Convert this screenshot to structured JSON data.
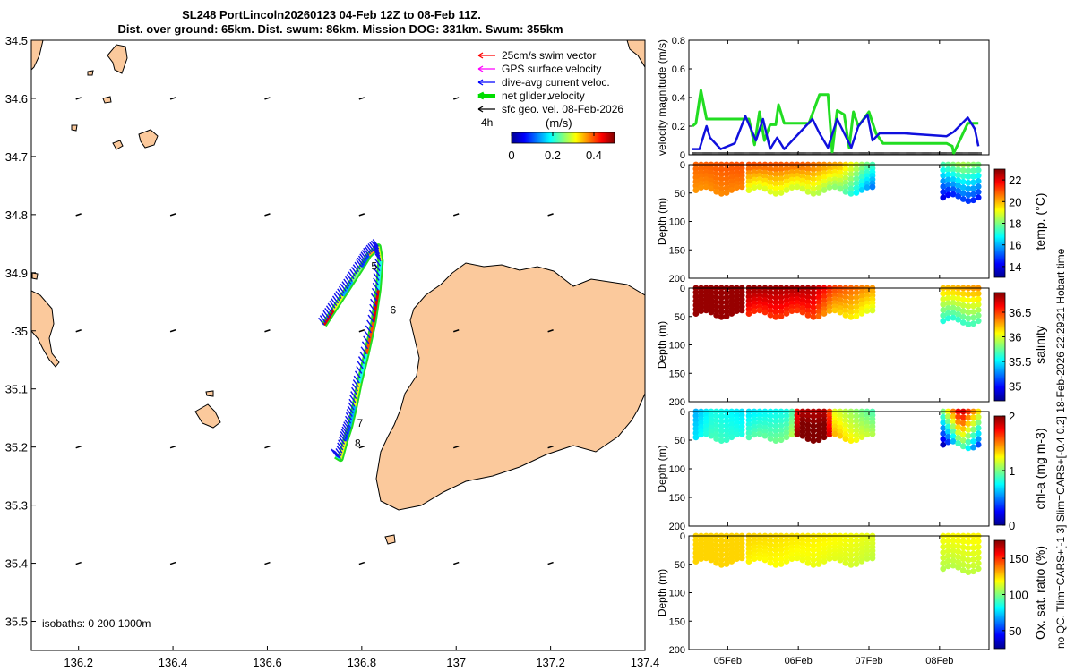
{
  "title_line1": "SL248 PortLincoln20260123 04-Feb 12Z to 08-Feb 11Z.",
  "title_line2": "Dist. over ground: 65km. Dist. swum: 86km. Mission DOG: 331km. Swum: 355km",
  "side_note": "no QC. Tlim=CARS+[-1 3] Slim=CARS+[-0.4 0.2] 18-Feb-2026 22:29:21 Hobart time",
  "map": {
    "lon_range": [
      136.1,
      137.4
    ],
    "lat_range": [
      -35.55,
      -34.5
    ],
    "lon_ticks": [
      136.2,
      136.4,
      136.6,
      136.8,
      137,
      137.2,
      137.4
    ],
    "lon_tick_labels": [
      "136.2",
      "136.4",
      "136.6",
      "136.8",
      "137",
      "137.2",
      "137.4"
    ],
    "lat_ticks": [
      -34.5,
      -34.6,
      -34.7,
      -34.8,
      -34.9,
      -35.0,
      -35.1,
      -35.2,
      -35.3,
      -35.4,
      -35.5
    ],
    "lat_tick_labels": [
      "34.5",
      "34.6",
      "34.7",
      "34.8",
      "34.9",
      "-35",
      "35.1",
      "35.2",
      "35.3",
      "35.4",
      "35.5"
    ],
    "isobaths_label": "isobaths: 0   200  1000m",
    "legend": [
      {
        "label": "25cm/s swim vector",
        "color": "#ff0000",
        "style": "arrow"
      },
      {
        "label": "GPS surface velocity",
        "color": "#ff00ff",
        "style": "arrow"
      },
      {
        "label": "dive-avg current veloc.",
        "color": "#0000ff",
        "style": "arrow"
      },
      {
        "label": "net glider velocity",
        "color": "#00dd00",
        "style": "thick-arrow"
      },
      {
        "label": "sfc geo. vel. 08-Feb-2026",
        "color": "#000000",
        "style": "arrow"
      }
    ],
    "legend_extra": "4h",
    "colorbar": {
      "label": "(m/s)",
      "ticks": [
        "0",
        "0.2",
        "0.4"
      ],
      "range": [
        0,
        0.5
      ]
    },
    "day_labels": [
      {
        "text": "5",
        "lon": 136.82,
        "lat": -34.895
      },
      {
        "text": "6",
        "lon": 136.86,
        "lat": -34.97
      },
      {
        "text": "7",
        "lon": 136.79,
        "lat": -35.165
      },
      {
        "text": "8",
        "lon": 136.785,
        "lat": -35.2
      }
    ],
    "track": [
      [
        136.72,
        -34.99
      ],
      [
        136.74,
        -34.965
      ],
      [
        136.76,
        -34.94
      ],
      [
        136.78,
        -34.915
      ],
      [
        136.8,
        -34.89
      ],
      [
        136.815,
        -34.87
      ],
      [
        136.835,
        -34.855
      ],
      [
        136.84,
        -34.88
      ],
      [
        136.835,
        -34.93
      ],
      [
        136.825,
        -34.985
      ],
      [
        136.81,
        -35.04
      ],
      [
        136.795,
        -35.09
      ],
      [
        136.785,
        -35.13
      ],
      [
        136.775,
        -35.165
      ],
      [
        136.765,
        -35.19
      ],
      [
        136.755,
        -35.22
      ],
      [
        136.745,
        -35.215
      ]
    ],
    "track_speeds": [
      0.45,
      0.3,
      0.15,
      0.25,
      0.1,
      0.35,
      0.3,
      0.2,
      0.45,
      0.4,
      0.2,
      0.3,
      0.15,
      0.1,
      0.3,
      0.2
    ]
  },
  "x_time": {
    "range": [
      4.45,
      8.7
    ],
    "ticks": [
      5,
      6,
      7,
      8
    ],
    "tick_labels": [
      "05Feb",
      "06Feb",
      "07Feb",
      "08Feb"
    ]
  },
  "chart_data": [
    {
      "type": "line",
      "title": "velocity",
      "ylabel": "velocity magnitude (m/s)",
      "ylim": [
        0,
        0.8
      ],
      "yticks": [
        0,
        0.2,
        0.4,
        0.6,
        0.8
      ],
      "ytick_labels": [
        "0",
        "0.2",
        "0.4",
        "0.6",
        "0.8"
      ],
      "series": [
        {
          "name": "net glider velocity",
          "color": "#22dd22",
          "x": [
            4.5,
            4.55,
            4.62,
            4.7,
            4.75,
            5.3,
            5.38,
            5.45,
            5.52,
            5.6,
            5.68,
            5.72,
            5.8,
            6.1,
            6.15,
            6.3,
            6.42,
            6.48,
            6.55,
            6.65,
            6.72,
            6.78,
            6.85,
            7.0,
            7.1,
            7.2,
            8.1,
            8.18,
            8.2,
            8.4,
            8.45,
            8.55
          ],
          "y": [
            0.2,
            0.22,
            0.45,
            0.25,
            0.25,
            0.25,
            0.07,
            0.3,
            0.1,
            0.21,
            0.21,
            0.35,
            0.22,
            0.22,
            0.22,
            0.42,
            0.42,
            0.02,
            0.31,
            0.28,
            0.05,
            0.3,
            0.2,
            0.3,
            0.15,
            0.08,
            0.08,
            0.06,
            0.01,
            0.22,
            0.22,
            0.22
          ]
        },
        {
          "name": "dive-avg current",
          "color": "#1010dd",
          "x": [
            4.5,
            4.6,
            4.7,
            4.75,
            4.9,
            5.1,
            5.25,
            5.4,
            5.5,
            5.6,
            5.7,
            5.8,
            6.2,
            6.3,
            6.42,
            6.55,
            6.65,
            6.75,
            6.85,
            6.98,
            7.05,
            7.15,
            7.5,
            7.8,
            8.1,
            8.2,
            8.4,
            8.5,
            8.55
          ],
          "y": [
            0.04,
            0.04,
            0.2,
            0.12,
            0.04,
            0.08,
            0.27,
            0.1,
            0.25,
            0.04,
            0.12,
            0.04,
            0.25,
            0.15,
            0.05,
            0.25,
            0.15,
            0.05,
            0.2,
            0.28,
            0.1,
            0.15,
            0.15,
            0.14,
            0.13,
            0.16,
            0.26,
            0.18,
            0.06
          ]
        }
      ]
    },
    {
      "type": "heatmap",
      "title": "temperature",
      "ylabel": "Depth (m)",
      "clabel": "temp. (°C)",
      "ylim": [
        200,
        0
      ],
      "yticks": [
        0,
        50,
        100,
        150,
        200
      ],
      "ytick_labels": [
        "0",
        "50",
        "100",
        "150",
        "200"
      ],
      "crange": [
        13,
        23
      ],
      "cticks": [
        14,
        16,
        18,
        20,
        22
      ],
      "ctick_labels": [
        "14",
        "16",
        "18",
        "20",
        "22"
      ],
      "segments": [
        {
          "x": [
            4.55,
            5.2
          ],
          "depth": 45,
          "stops": [
            [
              4.55,
              20.8
            ],
            [
              5.2,
              21.0
            ]
          ],
          "deep_offset": -0.5
        },
        {
          "x": [
            5.3,
            7.05
          ],
          "depth": 45,
          "stops": [
            [
              5.3,
              21.0
            ],
            [
              6.1,
              20.8
            ],
            [
              6.6,
              20.0
            ],
            [
              7.05,
              17.5
            ]
          ],
          "deep_offset": -2.0
        },
        {
          "x": [
            8.05,
            8.55
          ],
          "depth": 58,
          "stops": [
            [
              8.05,
              17.5
            ],
            [
              8.3,
              18.5
            ],
            [
              8.55,
              18.0
            ]
          ],
          "deep_offset": -3.5
        }
      ]
    },
    {
      "type": "heatmap",
      "title": "salinity",
      "ylabel": "Depth (m)",
      "clabel": "salinity",
      "ylim": [
        200,
        0
      ],
      "yticks": [
        0,
        50,
        100,
        150,
        200
      ],
      "ytick_labels": [
        "0",
        "50",
        "100",
        "150",
        "200"
      ],
      "crange": [
        34.7,
        36.9
      ],
      "cticks": [
        35,
        35.5,
        36,
        36.5
      ],
      "ctick_labels": [
        "35",
        "35.5",
        "36",
        "36.5"
      ],
      "segments": [
        {
          "x": [
            4.55,
            5.2
          ],
          "depth": 45,
          "stops": [
            [
              4.55,
              36.85
            ],
            [
              5.2,
              36.85
            ]
          ],
          "deep_offset": 0
        },
        {
          "x": [
            5.3,
            7.05
          ],
          "depth": 45,
          "stops": [
            [
              5.3,
              36.85
            ],
            [
              6.2,
              36.8
            ],
            [
              6.5,
              36.5
            ],
            [
              7.05,
              36.3
            ]
          ],
          "deep_offset": -0.3
        },
        {
          "x": [
            8.05,
            8.55
          ],
          "depth": 58,
          "stops": [
            [
              8.05,
              36.2
            ],
            [
              8.55,
              36.3
            ]
          ],
          "deep_offset": -0.6
        }
      ]
    },
    {
      "type": "heatmap",
      "title": "chlorophyll",
      "ylabel": "Depth (m)",
      "clabel": "chl-a (mg m-3)",
      "ylim": [
        200,
        0
      ],
      "yticks": [
        0,
        50,
        100,
        150,
        200
      ],
      "ytick_labels": [
        "0",
        "50",
        "100",
        "150",
        "200"
      ],
      "crange": [
        0,
        2
      ],
      "cticks": [
        0,
        1,
        2
      ],
      "ctick_labels": [
        "0",
        "1",
        "2"
      ],
      "segments": [
        {
          "x": [
            4.55,
            5.2
          ],
          "depth": 45,
          "stops": [
            [
              4.55,
              0.6
            ],
            [
              4.8,
              0.8
            ],
            [
              5.2,
              0.7
            ]
          ],
          "deep_offset": 0.1
        },
        {
          "x": [
            5.3,
            7.05
          ],
          "depth": 45,
          "stops": [
            [
              5.3,
              0.7
            ],
            [
              5.9,
              0.8
            ],
            [
              6.0,
              1.9
            ],
            [
              6.4,
              1.9
            ],
            [
              6.5,
              1.2
            ],
            [
              7.05,
              0.9
            ]
          ],
          "deep_offset": 0.2
        },
        {
          "x": [
            8.05,
            8.55
          ],
          "depth": 58,
          "stops": [
            [
              8.05,
              1.0
            ],
            [
              8.3,
              1.9
            ],
            [
              8.55,
              1.3
            ]
          ],
          "deep_offset": -0.9
        }
      ]
    },
    {
      "type": "heatmap",
      "title": "oxygen saturation",
      "ylabel": "Depth (m)",
      "clabel": "Ox. sat. ratio (%)",
      "ylim": [
        200,
        0
      ],
      "yticks": [
        0,
        50,
        100,
        150,
        200
      ],
      "ytick_labels": [
        "0",
        "50",
        "100",
        "150",
        "200"
      ],
      "crange": [
        25,
        175
      ],
      "cticks": [
        50,
        100,
        150
      ],
      "ctick_labels": [
        "50",
        "100",
        "150"
      ],
      "segments": [
        {
          "x": [
            4.55,
            5.2
          ],
          "depth": 45,
          "stops": [
            [
              4.55,
              125
            ],
            [
              5.2,
              125
            ]
          ],
          "deep_offset": 0
        },
        {
          "x": [
            5.3,
            7.05
          ],
          "depth": 45,
          "stops": [
            [
              5.3,
              125
            ],
            [
              6.5,
              120
            ],
            [
              7.05,
              115
            ]
          ],
          "deep_offset": -5
        },
        {
          "x": [
            8.05,
            8.55
          ],
          "depth": 58,
          "stops": [
            [
              8.05,
              118
            ],
            [
              8.55,
              120
            ]
          ],
          "deep_offset": -10
        }
      ]
    }
  ]
}
